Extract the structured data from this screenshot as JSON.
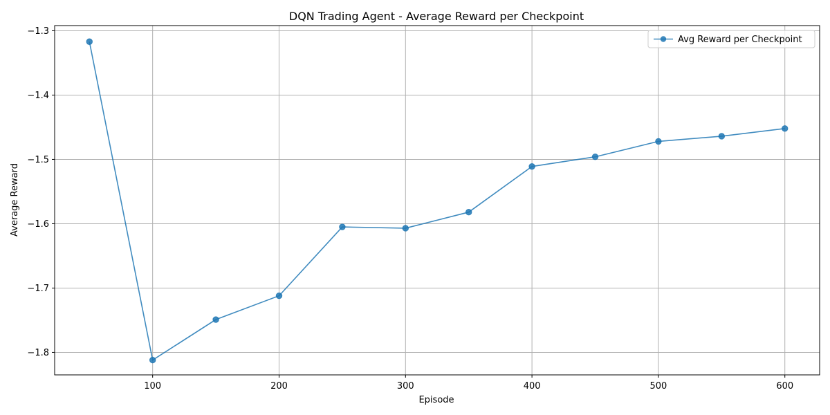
{
  "chart_data": {
    "type": "line",
    "title": "DQN Trading Agent - Average Reward per Checkpoint",
    "xlabel": "Episode",
    "ylabel": "Average Reward",
    "xlim": [
      22.5,
      627.5
    ],
    "ylim": [
      -1.835,
      -1.292
    ],
    "xticks": [
      100,
      200,
      300,
      400,
      500,
      600
    ],
    "yticks": [
      -1.8,
      -1.7,
      -1.6,
      -1.5,
      -1.4,
      -1.3
    ],
    "xtick_labels": [
      "100",
      "200",
      "300",
      "400",
      "500",
      "600"
    ],
    "ytick_labels": [
      "−1.8",
      "−1.7",
      "−1.6",
      "−1.5",
      "−1.4",
      "−1.3"
    ],
    "grid": true,
    "legend_position": "top-right",
    "series": [
      {
        "name": "Avg Reward per Checkpoint",
        "color": "#1f77b4",
        "marker": "circle",
        "x": [
          50,
          100,
          150,
          200,
          250,
          300,
          350,
          400,
          450,
          500,
          550,
          600
        ],
        "y": [
          -1.317,
          -1.812,
          -1.749,
          -1.712,
          -1.605,
          -1.607,
          -1.582,
          -1.511,
          -1.496,
          -1.472,
          -1.464,
          -1.452
        ]
      }
    ]
  }
}
